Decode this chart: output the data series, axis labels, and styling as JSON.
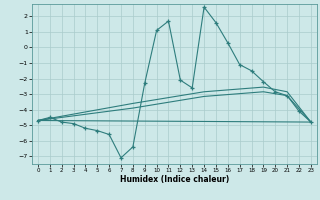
{
  "xlabel": "Humidex (Indice chaleur)",
  "bg_color": "#cde8e8",
  "grid_color": "#aacccc",
  "line_color": "#2e7d7d",
  "xlim": [
    -0.5,
    23.5
  ],
  "ylim": [
    -7.5,
    2.8
  ],
  "xticks": [
    0,
    1,
    2,
    3,
    4,
    5,
    6,
    7,
    8,
    9,
    10,
    11,
    12,
    13,
    14,
    15,
    16,
    17,
    18,
    19,
    20,
    21,
    22,
    23
  ],
  "yticks": [
    -7,
    -6,
    -5,
    -4,
    -3,
    -2,
    -1,
    0,
    1,
    2
  ],
  "line1_x": [
    0,
    1,
    2,
    3,
    4,
    5,
    6,
    7,
    8,
    9,
    10,
    11,
    12,
    13,
    14,
    15,
    16,
    17,
    18,
    19,
    20,
    21,
    22,
    23
  ],
  "line1_y": [
    -4.7,
    -4.5,
    -4.8,
    -4.9,
    -5.2,
    -5.35,
    -5.6,
    -7.1,
    -6.4,
    -2.3,
    1.1,
    1.7,
    -2.1,
    -2.6,
    2.6,
    1.6,
    0.3,
    -1.1,
    -1.5,
    -2.2,
    -2.85,
    -3.1,
    -4.1,
    -4.8
  ],
  "line2_x": [
    0,
    23
  ],
  "line2_y": [
    -4.7,
    -4.8
  ],
  "line3_x": [
    0,
    8,
    14,
    19,
    21,
    23
  ],
  "line3_y": [
    -4.7,
    -3.6,
    -2.85,
    -2.55,
    -2.85,
    -4.8
  ],
  "line4_x": [
    0,
    8,
    14,
    19,
    21,
    23
  ],
  "line4_y": [
    -4.7,
    -3.9,
    -3.15,
    -2.85,
    -3.1,
    -4.8
  ]
}
